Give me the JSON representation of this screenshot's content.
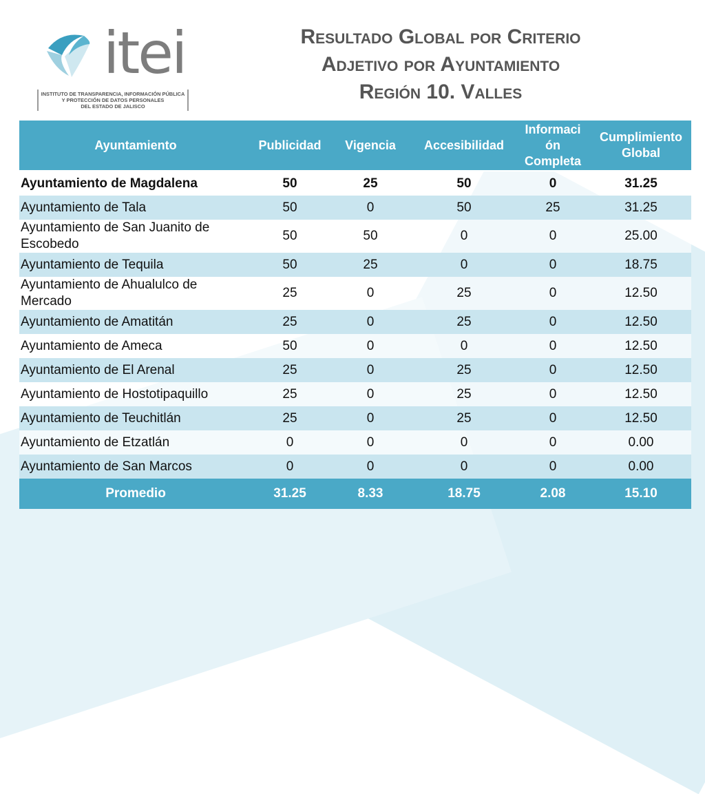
{
  "logo": {
    "word": "itei",
    "subtitle": [
      "INSTITUTO DE TRANSPARENCIA, INFORMACIÓN PÚBLICA",
      "Y PROTECCIÓN DE DATOS PERSONALES",
      "DEL ESTADO DE JALISCO"
    ]
  },
  "title": {
    "line1": "Resultado Global por Criterio",
    "line2": "Adjetivo por Ayuntamiento",
    "line3": "Región 10. Valles"
  },
  "table": {
    "headers": [
      "Ayuntamiento",
      "Publicidad",
      "Vigencia",
      "Accesibilidad",
      "Informaci\nón\nCompleta",
      "Cumplimiento Global"
    ],
    "rows": [
      [
        "Ayuntamiento de Magdalena",
        "50",
        "25",
        "50",
        "0",
        "31.25"
      ],
      [
        "Ayuntamiento de Tala",
        "50",
        "0",
        "50",
        "25",
        "31.25"
      ],
      [
        "Ayuntamiento de San Juanito de Escobedo",
        "50",
        "50",
        "0",
        "0",
        "25.00"
      ],
      [
        "Ayuntamiento de Tequila",
        "50",
        "25",
        "0",
        "0",
        "18.75"
      ],
      [
        "Ayuntamiento de Ahualulco de Mercado",
        "25",
        "0",
        "25",
        "0",
        "12.50"
      ],
      [
        "Ayuntamiento de Amatitán",
        "25",
        "0",
        "25",
        "0",
        "12.50"
      ],
      [
        "Ayuntamiento de Ameca",
        "50",
        "0",
        "0",
        "0",
        "12.50"
      ],
      [
        "Ayuntamiento de El Arenal",
        "25",
        "0",
        "25",
        "0",
        "12.50"
      ],
      [
        "Ayuntamiento de Hostotipaquillo",
        "25",
        "0",
        "25",
        "0",
        "12.50"
      ],
      [
        "Ayuntamiento de Teuchitlán",
        "25",
        "0",
        "25",
        "0",
        "12.50"
      ],
      [
        "Ayuntamiento de Etzatlán",
        "0",
        "0",
        "0",
        "0",
        "0.00"
      ],
      [
        "Ayuntamiento de San Marcos",
        "0",
        "0",
        "0",
        "0",
        "0.00"
      ]
    ],
    "footer": [
      "Promedio",
      "31.25",
      "8.33",
      "18.75",
      "2.08",
      "15.10"
    ]
  },
  "colors": {
    "header_bg": "#4aa9c7",
    "stripe": "#c9e5ef",
    "title_text": "#555555"
  }
}
